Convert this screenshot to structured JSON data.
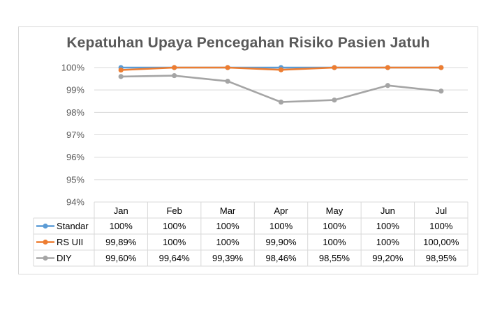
{
  "chart_data": {
    "type": "line",
    "title": "Kepatuhan Upaya Pencegahan Risiko Pasien Jatuh",
    "categories": [
      "Jan",
      "Feb",
      "Mar",
      "Apr",
      "May",
      "Jun",
      "Jul"
    ],
    "ylim": [
      94,
      100
    ],
    "yticks": [
      94,
      95,
      96,
      97,
      98,
      99,
      100
    ],
    "ytick_labels": [
      "94%",
      "95%",
      "96%",
      "97%",
      "98%",
      "99%",
      "100%"
    ],
    "grid": true,
    "legend": "data-table",
    "series": [
      {
        "name": "Standar",
        "color": "#5b9bd5",
        "values": [
          100,
          100,
          100,
          100,
          100,
          100,
          100
        ],
        "labels": [
          "100%",
          "100%",
          "100%",
          "100%",
          "100%",
          "100%",
          "100%"
        ]
      },
      {
        "name": "RS UII",
        "color": "#ed7d31",
        "values": [
          99.89,
          100,
          100,
          99.9,
          100,
          100,
          100
        ],
        "labels": [
          "99,89%",
          "100%",
          "100%",
          "99,90%",
          "100%",
          "100%",
          "100,00%"
        ]
      },
      {
        "name": "DIY",
        "color": "#a5a5a5",
        "values": [
          99.6,
          99.64,
          99.39,
          98.46,
          98.55,
          99.2,
          98.95
        ],
        "labels": [
          "99,60%",
          "99,64%",
          "99,39%",
          "98,46%",
          "98,55%",
          "99,20%",
          "98,95%"
        ]
      }
    ]
  }
}
